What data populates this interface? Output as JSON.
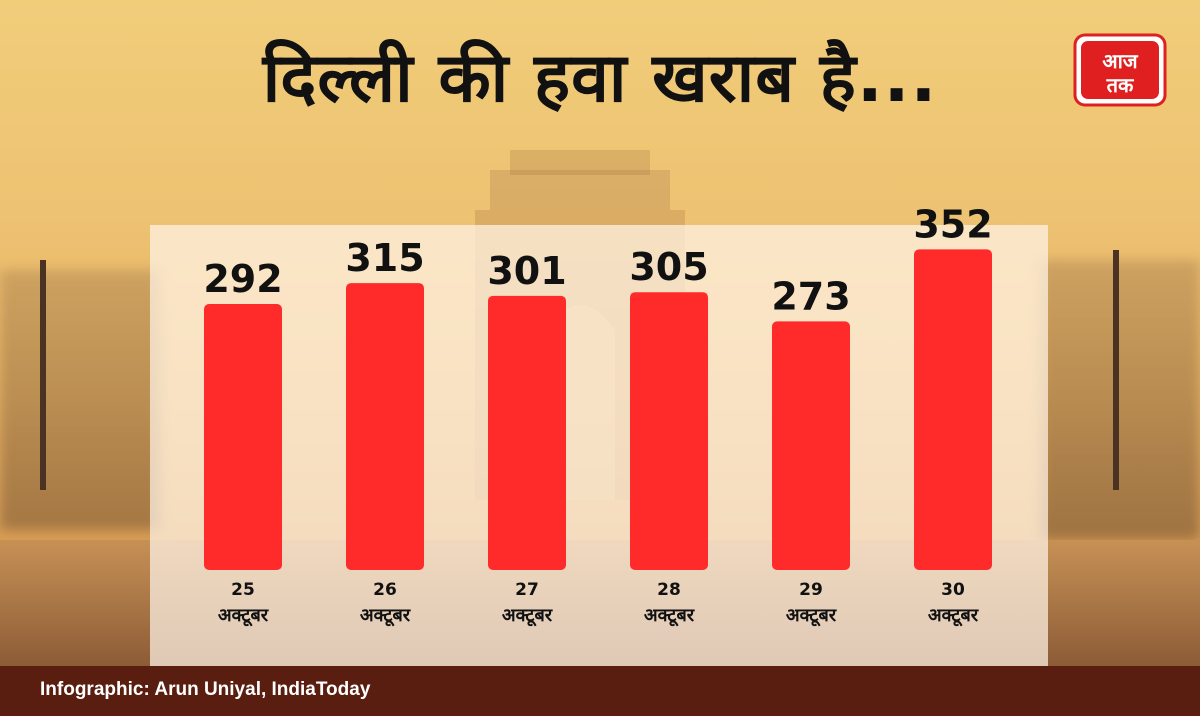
{
  "header": {
    "title": "दिल्ली की हवा खराब है...",
    "logo_text": "आज तक"
  },
  "colors": {
    "bar": "#ff2a2a",
    "footer": "#5a1e10",
    "logo_red": "#e02020"
  },
  "chart_data": {
    "type": "bar",
    "title": "दिल्ली की हवा खराब है...",
    "categories": [
      "25 अक्टूबर",
      "26 अक्टूबर",
      "27 अक्टूबर",
      "28 अक्टूबर",
      "29 अक्टूबर",
      "30 अक्टूबर"
    ],
    "day_labels": [
      "25",
      "26",
      "27",
      "28",
      "29",
      "30"
    ],
    "month_label": "अक्टूबर",
    "values": [
      292,
      315,
      301,
      305,
      273,
      352
    ],
    "ylim": [
      0,
      370
    ],
    "grid": false,
    "legend": "none"
  },
  "footer": {
    "credit": "Infographic: Arun Uniyal, IndiaToday"
  }
}
